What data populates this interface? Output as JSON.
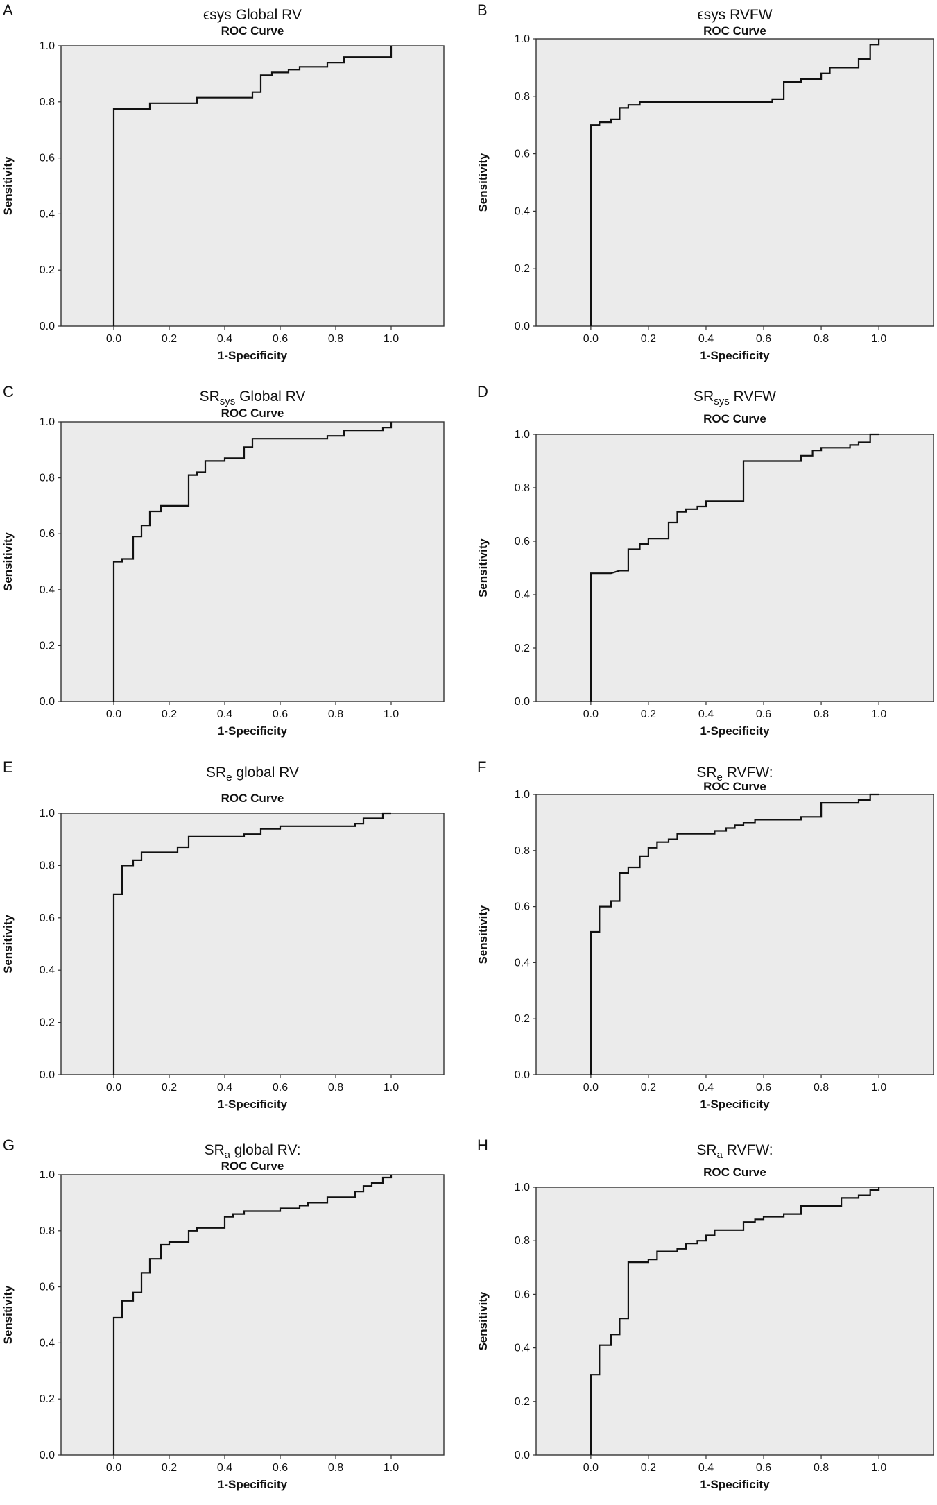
{
  "chart_data": [
    {
      "type": "line",
      "panel_letter": "A",
      "title_main": "ϵsys Global RV",
      "title_sub": "",
      "title_suffix": "",
      "subtitle": "ROC Curve",
      "xlabel": "1-Specificity",
      "ylabel": "Sensitivity",
      "xlim": [
        -0.19,
        1.19
      ],
      "ylim": [
        0,
        1
      ],
      "xticks": [
        "0.0",
        "0.2",
        "0.4",
        "0.6",
        "0.8",
        "1.0"
      ],
      "yticks": [
        "0.0",
        "0.2",
        "0.4",
        "0.6",
        "0.8",
        "1.0"
      ],
      "grid": false,
      "legend": false,
      "series": [
        {
          "x": [
            0,
            0,
            0.13,
            0.13,
            0.3,
            0.3,
            0.5,
            0.5,
            0.53,
            0.53,
            0.57,
            0.57,
            0.63,
            0.63,
            0.67,
            0.67,
            0.77,
            0.77,
            0.83,
            0.83,
            1.0,
            1.0
          ],
          "y": [
            0,
            0.775,
            0.775,
            0.795,
            0.795,
            0.815,
            0.815,
            0.835,
            0.835,
            0.895,
            0.895,
            0.905,
            0.905,
            0.915,
            0.915,
            0.925,
            0.925,
            0.94,
            0.94,
            0.96,
            0.96,
            1.0
          ]
        }
      ]
    },
    {
      "type": "line",
      "panel_letter": "B",
      "title_main": "ϵsys RVFW",
      "title_sub": "",
      "title_suffix": "",
      "subtitle": "ROC Curve",
      "xlabel": "1-Specificity",
      "ylabel": "Sensitivity",
      "xlim": [
        -0.19,
        1.19
      ],
      "ylim": [
        0,
        1
      ],
      "xticks": [
        "0.0",
        "0.2",
        "0.4",
        "0.6",
        "0.8",
        "1.0"
      ],
      "yticks": [
        "0.0",
        "0.2",
        "0.4",
        "0.6",
        "0.8",
        "1.0"
      ],
      "grid": false,
      "legend": false,
      "series": [
        {
          "x": [
            0,
            0,
            0.03,
            0.03,
            0.07,
            0.07,
            0.1,
            0.1,
            0.13,
            0.13,
            0.17,
            0.17,
            0.63,
            0.63,
            0.67,
            0.67,
            0.73,
            0.73,
            0.8,
            0.8,
            0.83,
            0.83,
            0.93,
            0.93,
            0.97,
            0.97,
            1.0,
            1.0
          ],
          "y": [
            0,
            0.7,
            0.7,
            0.71,
            0.71,
            0.72,
            0.72,
            0.76,
            0.76,
            0.77,
            0.77,
            0.78,
            0.78,
            0.79,
            0.79,
            0.85,
            0.85,
            0.86,
            0.86,
            0.88,
            0.88,
            0.9,
            0.9,
            0.93,
            0.93,
            0.98,
            0.98,
            1.0
          ]
        }
      ]
    },
    {
      "type": "line",
      "panel_letter": "C",
      "title_main": "SR",
      "title_sub": "sys",
      "title_suffix": " Global RV",
      "subtitle": "ROC Curve",
      "xlabel": "1-Specificity",
      "ylabel": "Sensitivity",
      "xlim": [
        -0.19,
        1.19
      ],
      "ylim": [
        0,
        1
      ],
      "xticks": [
        "0.0",
        "0.2",
        "0.4",
        "0.6",
        "0.8",
        "1.0"
      ],
      "yticks": [
        "0.0",
        "0.2",
        "0.4",
        "0.6",
        "0.8",
        "1.0"
      ],
      "grid": false,
      "legend": false,
      "series": [
        {
          "x": [
            0,
            0,
            0.03,
            0.03,
            0.07,
            0.07,
            0.1,
            0.1,
            0.13,
            0.13,
            0.17,
            0.17,
            0.27,
            0.27,
            0.3,
            0.3,
            0.33,
            0.33,
            0.4,
            0.4,
            0.47,
            0.47,
            0.5,
            0.5,
            0.77,
            0.77,
            0.83,
            0.83,
            0.97,
            0.97,
            1.0,
            1.0
          ],
          "y": [
            0,
            0.5,
            0.5,
            0.51,
            0.51,
            0.59,
            0.59,
            0.63,
            0.63,
            0.68,
            0.68,
            0.7,
            0.7,
            0.81,
            0.81,
            0.82,
            0.82,
            0.86,
            0.86,
            0.87,
            0.87,
            0.91,
            0.91,
            0.94,
            0.94,
            0.95,
            0.95,
            0.97,
            0.97,
            0.98,
            0.98,
            1.0
          ]
        }
      ]
    },
    {
      "type": "line",
      "panel_letter": "D",
      "title_main": "SR",
      "title_sub": "sys",
      "title_suffix": " RVFW",
      "subtitle": "ROC Curve",
      "xlabel": "1-Specificity",
      "ylabel": "Sensitivity",
      "xlim": [
        -0.19,
        1.19
      ],
      "ylim": [
        0,
        1
      ],
      "xticks": [
        "0.0",
        "0.2",
        "0.4",
        "0.6",
        "0.8",
        "1.0"
      ],
      "yticks": [
        "0.0",
        "0.2",
        "0.4",
        "0.6",
        "0.8",
        "1.0"
      ],
      "grid": false,
      "legend": false,
      "series": [
        {
          "x": [
            0,
            0,
            0.07,
            0.1,
            0.13,
            0.13,
            0.17,
            0.17,
            0.2,
            0.2,
            0.27,
            0.27,
            0.3,
            0.3,
            0.33,
            0.33,
            0.37,
            0.37,
            0.4,
            0.4,
            0.53,
            0.53,
            0.73,
            0.73,
            0.77,
            0.77,
            0.8,
            0.8,
            0.9,
            0.9,
            0.93,
            0.93,
            0.97,
            0.97,
            1.0
          ],
          "y": [
            0,
            0.48,
            0.48,
            0.49,
            0.49,
            0.57,
            0.57,
            0.59,
            0.59,
            0.61,
            0.61,
            0.67,
            0.67,
            0.71,
            0.71,
            0.72,
            0.72,
            0.73,
            0.73,
            0.75,
            0.75,
            0.9,
            0.9,
            0.92,
            0.92,
            0.94,
            0.94,
            0.95,
            0.95,
            0.96,
            0.96,
            0.97,
            0.97,
            1.0,
            1.0
          ]
        }
      ]
    },
    {
      "type": "line",
      "panel_letter": "E",
      "title_main": "SR",
      "title_sub": "e",
      "title_suffix": " global RV",
      "subtitle": "ROC Curve",
      "xlabel": "1-Specificity",
      "ylabel": "Sensitivity",
      "xlim": [
        -0.19,
        1.19
      ],
      "ylim": [
        0,
        1
      ],
      "xticks": [
        "0.0",
        "0.2",
        "0.4",
        "0.6",
        "0.8",
        "1.0"
      ],
      "yticks": [
        "0.0",
        "0.2",
        "0.4",
        "0.6",
        "0.8",
        "1.0"
      ],
      "grid": false,
      "legend": false,
      "series": [
        {
          "x": [
            0,
            0,
            0.03,
            0.03,
            0.07,
            0.07,
            0.1,
            0.1,
            0.23,
            0.23,
            0.27,
            0.27,
            0.47,
            0.47,
            0.53,
            0.53,
            0.6,
            0.6,
            0.87,
            0.87,
            0.9,
            0.9,
            0.97,
            0.97,
            1.0
          ],
          "y": [
            0,
            0.69,
            0.69,
            0.8,
            0.8,
            0.82,
            0.82,
            0.85,
            0.85,
            0.87,
            0.87,
            0.91,
            0.91,
            0.92,
            0.92,
            0.94,
            0.94,
            0.95,
            0.95,
            0.96,
            0.96,
            0.98,
            0.98,
            1.0,
            1.0
          ]
        }
      ]
    },
    {
      "type": "line",
      "panel_letter": "F",
      "title_main": "SR",
      "title_sub": "e",
      "title_suffix": " RVFW:",
      "subtitle": "ROC Curve",
      "xlabel": "1-Specificity",
      "ylabel": "Sensitivity",
      "xlim": [
        -0.19,
        1.19
      ],
      "ylim": [
        0,
        1
      ],
      "xticks": [
        "0.0",
        "0.2",
        "0.4",
        "0.6",
        "0.8",
        "1.0"
      ],
      "yticks": [
        "0.0",
        "0.2",
        "0.4",
        "0.6",
        "0.8",
        "1.0"
      ],
      "grid": false,
      "legend": false,
      "series": [
        {
          "x": [
            0,
            0,
            0.03,
            0.03,
            0.07,
            0.07,
            0.1,
            0.1,
            0.13,
            0.13,
            0.17,
            0.17,
            0.2,
            0.2,
            0.23,
            0.23,
            0.27,
            0.27,
            0.3,
            0.3,
            0.43,
            0.43,
            0.47,
            0.47,
            0.5,
            0.5,
            0.53,
            0.53,
            0.57,
            0.57,
            0.73,
            0.73,
            0.8,
            0.8,
            0.93,
            0.93,
            0.97,
            0.97,
            1.0,
            1.0
          ],
          "y": [
            0,
            0.51,
            0.51,
            0.6,
            0.6,
            0.62,
            0.62,
            0.72,
            0.72,
            0.74,
            0.74,
            0.78,
            0.78,
            0.81,
            0.81,
            0.83,
            0.83,
            0.84,
            0.84,
            0.86,
            0.86,
            0.87,
            0.87,
            0.88,
            0.88,
            0.89,
            0.89,
            0.9,
            0.9,
            0.91,
            0.91,
            0.92,
            0.92,
            0.97,
            0.97,
            0.98,
            0.98,
            1.0,
            1.0,
            1.0
          ]
        }
      ]
    },
    {
      "type": "line",
      "panel_letter": "G",
      "title_main": "SR",
      "title_sub": "a",
      "title_suffix": " global RV:",
      "subtitle": "ROC Curve",
      "xlabel": "1-Specificity",
      "ylabel": "Sensitivity",
      "xlim": [
        -0.19,
        1.19
      ],
      "ylim": [
        0,
        1
      ],
      "xticks": [
        "0.0",
        "0.2",
        "0.4",
        "0.6",
        "0.8",
        "1.0"
      ],
      "yticks": [
        "0.0",
        "0.2",
        "0.4",
        "0.6",
        "0.8",
        "1.0"
      ],
      "grid": false,
      "legend": false,
      "series": [
        {
          "x": [
            0,
            0,
            0.03,
            0.03,
            0.07,
            0.07,
            0.1,
            0.1,
            0.13,
            0.13,
            0.17,
            0.17,
            0.2,
            0.2,
            0.27,
            0.27,
            0.3,
            0.3,
            0.4,
            0.4,
            0.43,
            0.43,
            0.47,
            0.47,
            0.6,
            0.6,
            0.67,
            0.67,
            0.7,
            0.7,
            0.77,
            0.77,
            0.87,
            0.87,
            0.9,
            0.9,
            0.93,
            0.93,
            0.97,
            0.97,
            1.0,
            1.0
          ],
          "y": [
            0,
            0.49,
            0.49,
            0.55,
            0.55,
            0.58,
            0.58,
            0.65,
            0.65,
            0.7,
            0.7,
            0.75,
            0.75,
            0.76,
            0.76,
            0.8,
            0.8,
            0.81,
            0.81,
            0.85,
            0.85,
            0.86,
            0.86,
            0.87,
            0.87,
            0.88,
            0.88,
            0.89,
            0.89,
            0.9,
            0.9,
            0.92,
            0.92,
            0.94,
            0.94,
            0.96,
            0.96,
            0.97,
            0.97,
            0.99,
            0.99,
            1.0
          ]
        }
      ]
    },
    {
      "type": "line",
      "panel_letter": "H",
      "title_main": "SR",
      "title_sub": "a",
      "title_suffix": " RVFW:",
      "subtitle": "ROC Curve",
      "xlabel": "1-Specificity",
      "ylabel": "Sensitivity",
      "xlim": [
        -0.19,
        1.19
      ],
      "ylim": [
        0,
        1
      ],
      "xticks": [
        "0.0",
        "0.2",
        "0.4",
        "0.6",
        "0.8",
        "1.0"
      ],
      "yticks": [
        "0.0",
        "0.2",
        "0.4",
        "0.6",
        "0.8",
        "1.0"
      ],
      "grid": false,
      "legend": false,
      "series": [
        {
          "x": [
            0,
            0,
            0.03,
            0.03,
            0.07,
            0.07,
            0.1,
            0.1,
            0.13,
            0.13,
            0.2,
            0.2,
            0.23,
            0.23,
            0.3,
            0.3,
            0.33,
            0.33,
            0.37,
            0.37,
            0.4,
            0.4,
            0.43,
            0.43,
            0.53,
            0.53,
            0.57,
            0.57,
            0.6,
            0.6,
            0.67,
            0.67,
            0.73,
            0.73,
            0.87,
            0.87,
            0.93,
            0.93,
            0.97,
            0.97,
            1.0,
            1.0
          ],
          "y": [
            0,
            0.3,
            0.3,
            0.41,
            0.41,
            0.45,
            0.45,
            0.51,
            0.51,
            0.72,
            0.72,
            0.73,
            0.73,
            0.76,
            0.76,
            0.77,
            0.77,
            0.79,
            0.79,
            0.8,
            0.8,
            0.82,
            0.82,
            0.84,
            0.84,
            0.87,
            0.87,
            0.88,
            0.88,
            0.89,
            0.89,
            0.9,
            0.9,
            0.93,
            0.93,
            0.96,
            0.96,
            0.97,
            0.97,
            0.99,
            0.99,
            1.0
          ]
        }
      ]
    }
  ]
}
